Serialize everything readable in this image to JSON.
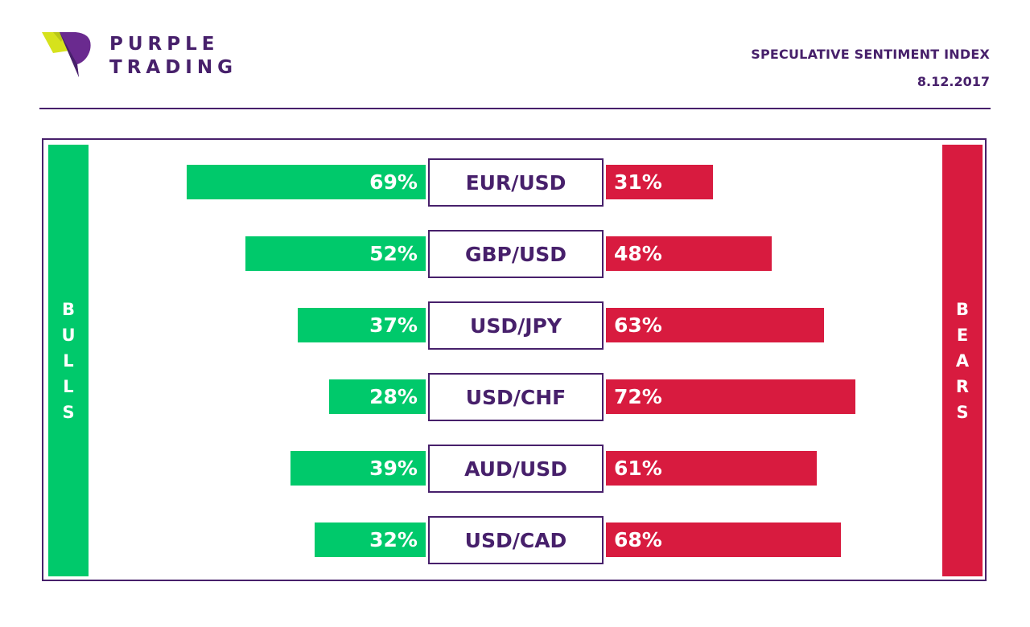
{
  "brand": {
    "line1": "PURPLE",
    "line2": "TRADING",
    "logo_icon": "purple-trading-logo-icon"
  },
  "header": {
    "title": "SPECULATIVE SENTIMENT INDEX",
    "date": "8.12.2017"
  },
  "colors": {
    "purple": "#47206b",
    "bulls": "#00c96b",
    "bears": "#d81b3f",
    "logo_yellow": "#d6e21c"
  },
  "chart_data": {
    "type": "bar",
    "title": "SPECULATIVE SENTIMENT INDEX",
    "side_labels": {
      "left": "BULLS",
      "right": "BEARS"
    },
    "categories": [
      "EUR/USD",
      "GBP/USD",
      "USD/JPY",
      "USD/CHF",
      "AUD/USD",
      "USD/CAD"
    ],
    "series": [
      {
        "name": "BULLS",
        "values": [
          69,
          52,
          37,
          28,
          39,
          32
        ]
      },
      {
        "name": "BEARS",
        "values": [
          31,
          48,
          63,
          72,
          61,
          68
        ]
      }
    ],
    "unit": "%",
    "ylim": [
      0,
      100
    ]
  }
}
